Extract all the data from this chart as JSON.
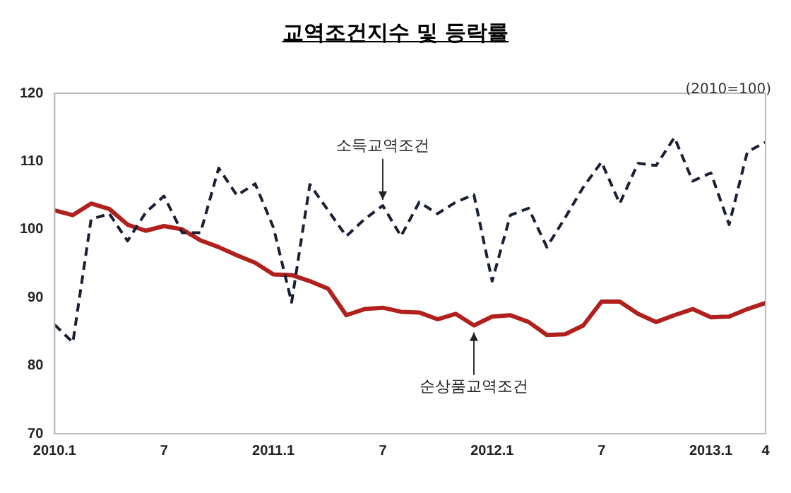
{
  "chart_data": {
    "type": "line",
    "title": "교역조건지수 및 등락률",
    "annotations": [
      "(2010=100)"
    ],
    "categories": [
      "2010.1",
      null,
      null,
      null,
      null,
      null,
      "7",
      null,
      null,
      null,
      null,
      null,
      "2011.1",
      null,
      null,
      null,
      null,
      null,
      "7",
      null,
      null,
      null,
      null,
      null,
      "2012.1",
      null,
      null,
      null,
      null,
      null,
      "7",
      null,
      null,
      null,
      null,
      null,
      "2013.1",
      null,
      null,
      "4"
    ],
    "series": [
      {
        "name": "소득교역조건",
        "color": "#1a1f33",
        "line_style": "dashed",
        "values": [
          86,
          83.4,
          101.5,
          102.3,
          98.3,
          102.5,
          104.9,
          99.5,
          99.5,
          109,
          105,
          106.7,
          100.3,
          89.3,
          106.6,
          102.8,
          99,
          101.5,
          103.5,
          99,
          104,
          102.3,
          104,
          105.1,
          92.4,
          102.1,
          103.1,
          97.4,
          101.7,
          106.2,
          109.9,
          103.8,
          109.7,
          109.4,
          113.5,
          107.1,
          108.3,
          100.7,
          111.4,
          112.8
        ]
      },
      {
        "name": "순상품교역조건",
        "color": "#b0201c",
        "line_style": "solid",
        "values": [
          102.8,
          102.1,
          103.8,
          103,
          100.7,
          99.8,
          100.5,
          100,
          98.4,
          97.4,
          96.2,
          95.1,
          93.4,
          93.3,
          92.4,
          91.3,
          87.4,
          88.3,
          88.5,
          87.9,
          87.8,
          86.8,
          87.6,
          85.9,
          87.2,
          87.4,
          86.4,
          84.5,
          84.6,
          85.9,
          89.4,
          89.4,
          87.6,
          86.4,
          87.4,
          88.3,
          87.1,
          87.2,
          88.3,
          89.2
        ]
      }
    ],
    "ylim": [
      70,
      120
    ],
    "yticks": [
      70,
      80,
      90,
      100,
      110,
      120
    ],
    "grid": false,
    "legend": false,
    "marker": "none"
  }
}
